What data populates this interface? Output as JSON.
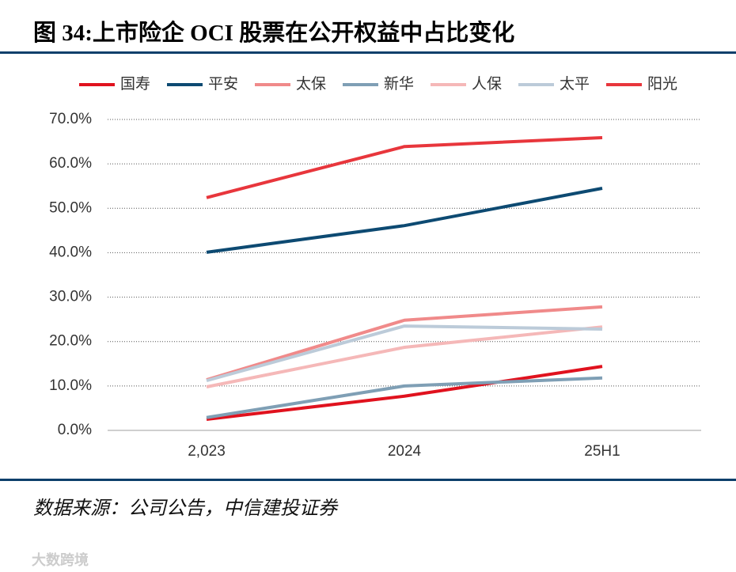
{
  "header": {
    "title": "图 34:上市险企 OCI 股票在公开权益中占比变化"
  },
  "footer": {
    "source": "数据来源：公司公告，中信建投证券",
    "watermark": "大数跨境"
  },
  "chart_data": {
    "type": "line",
    "categories": [
      "2,023",
      "2024",
      "25H1"
    ],
    "ylim": [
      0,
      70
    ],
    "yticks": [
      {
        "value": 0,
        "label": "0.0%"
      },
      {
        "value": 10,
        "label": "10.0%"
      },
      {
        "value": 20,
        "label": "20.0%"
      },
      {
        "value": 30,
        "label": "30.0%"
      },
      {
        "value": 40,
        "label": "40.0%"
      },
      {
        "value": 50,
        "label": "50.0%"
      },
      {
        "value": 60,
        "label": "60.0%"
      },
      {
        "value": 70,
        "label": "70.0%"
      }
    ],
    "grid": true,
    "legend": "top",
    "series": [
      {
        "name": "国寿",
        "color": "#e0121e",
        "values": [
          2.5,
          7.7,
          14.4
        ]
      },
      {
        "name": "平安",
        "color": "#0d4a72",
        "values": [
          40.1,
          46.1,
          54.5
        ]
      },
      {
        "name": "太保",
        "color": "#f08a8a",
        "values": [
          11.4,
          24.8,
          27.8
        ]
      },
      {
        "name": "新华",
        "color": "#7f9fb5",
        "values": [
          2.9,
          10.0,
          11.8
        ]
      },
      {
        "name": "人保",
        "color": "#f5b8b8",
        "values": [
          9.8,
          18.7,
          23.3
        ]
      },
      {
        "name": "太平",
        "color": "#bccbd9",
        "values": [
          11.2,
          23.5,
          22.8
        ]
      },
      {
        "name": "阳光",
        "color": "#e8363c",
        "values": [
          52.4,
          63.9,
          65.9
        ]
      }
    ]
  }
}
